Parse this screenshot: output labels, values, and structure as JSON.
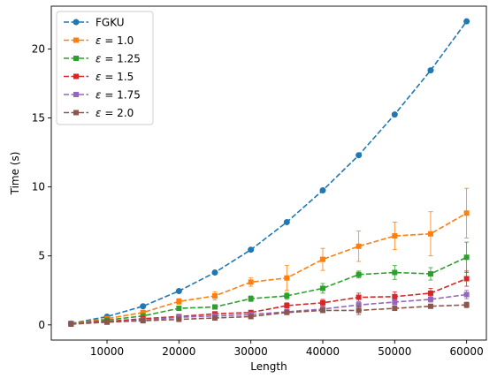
{
  "chart_data": {
    "type": "line",
    "title": "",
    "xlabel": "Length",
    "ylabel": "Time (s)",
    "xlim": [
      2250,
      62750
    ],
    "ylim": [
      -1.1,
      23.1
    ],
    "xticks": [
      10000,
      20000,
      30000,
      40000,
      50000,
      60000
    ],
    "yticks": [
      0,
      5,
      10,
      15,
      20
    ],
    "grid": false,
    "legend_position": "top-left",
    "x": [
      5000,
      10000,
      15000,
      20000,
      25000,
      30000,
      35000,
      40000,
      45000,
      50000,
      55000,
      60000
    ],
    "series": [
      {
        "name": "FGKU",
        "label_prefix": "",
        "label_value": "",
        "color": "#1f77b4",
        "marker": "circle",
        "values": [
          0.1,
          0.6,
          1.35,
          2.45,
          3.8,
          5.45,
          7.45,
          9.75,
          12.3,
          15.25,
          18.45,
          22.0
        ],
        "errors": [
          0,
          0,
          0,
          0,
          0,
          0,
          0,
          0,
          0,
          0,
          0,
          0
        ]
      },
      {
        "name": "ε = 1.0",
        "label_prefix": "ε",
        "label_value": "1.0",
        "color": "#ff7f0e",
        "marker": "square",
        "values": [
          0.1,
          0.45,
          0.9,
          1.7,
          2.1,
          3.1,
          3.4,
          4.75,
          5.7,
          6.45,
          6.6,
          8.1
        ],
        "errors": [
          0.05,
          0.1,
          0.15,
          0.2,
          0.3,
          0.3,
          0.9,
          0.8,
          1.1,
          1.0,
          1.6,
          1.8
        ]
      },
      {
        "name": "ε = 1.25",
        "label_prefix": "ε",
        "label_value": "1.25",
        "color": "#2ca02c",
        "marker": "square",
        "values": [
          0.1,
          0.35,
          0.65,
          1.2,
          1.3,
          1.9,
          2.1,
          2.65,
          3.65,
          3.8,
          3.7,
          4.9
        ],
        "errors": [
          0.05,
          0.08,
          0.1,
          0.15,
          0.15,
          0.2,
          0.25,
          0.35,
          0.25,
          0.5,
          0.45,
          1.1
        ]
      },
      {
        "name": "ε = 1.5",
        "label_prefix": "ε",
        "label_value": "1.5",
        "color": "#d62728",
        "marker": "square",
        "values": [
          0.1,
          0.25,
          0.45,
          0.6,
          0.8,
          0.9,
          1.4,
          1.6,
          2.0,
          2.05,
          2.3,
          3.35
        ],
        "errors": [
          0.05,
          0.05,
          0.08,
          0.1,
          0.1,
          0.1,
          0.2,
          0.25,
          0.3,
          0.35,
          0.35,
          0.55
        ]
      },
      {
        "name": "ε = 1.75",
        "label_prefix": "ε",
        "label_value": "1.75",
        "color": "#9467bd",
        "marker": "square",
        "values": [
          0.1,
          0.2,
          0.35,
          0.55,
          0.65,
          0.75,
          0.95,
          1.15,
          1.45,
          1.65,
          1.85,
          2.2
        ],
        "errors": [
          0.05,
          0.05,
          0.05,
          0.08,
          0.1,
          0.1,
          0.1,
          0.15,
          0.15,
          0.2,
          0.2,
          0.3
        ]
      },
      {
        "name": "ε = 2.0",
        "label_prefix": "ε",
        "label_value": "2.0",
        "color": "#8c564b",
        "marker": "square",
        "values": [
          0.05,
          0.2,
          0.3,
          0.4,
          0.5,
          0.6,
          0.9,
          1.05,
          1.05,
          1.2,
          1.35,
          1.45
        ],
        "errors": [
          0.03,
          0.05,
          0.05,
          0.08,
          0.08,
          0.1,
          0.1,
          0.15,
          0.3,
          0.15,
          0.15,
          0.2
        ]
      }
    ]
  }
}
